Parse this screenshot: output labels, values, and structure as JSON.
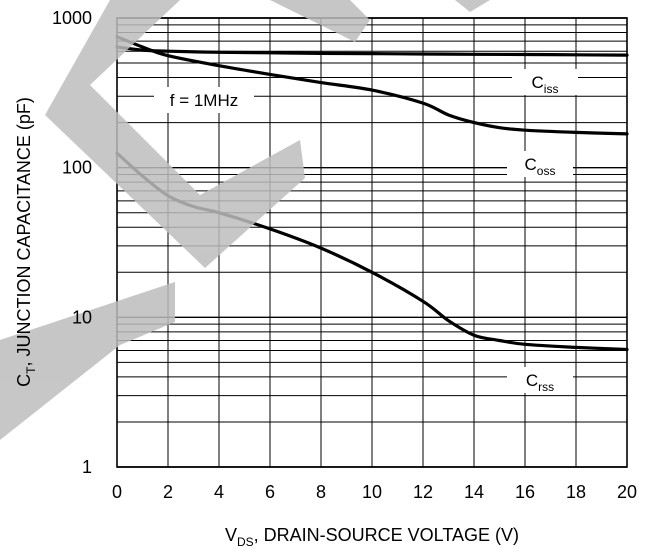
{
  "chart_data": {
    "type": "line",
    "title": "",
    "xlabel": {
      "prefix": "V",
      "sub": "DS",
      "suffix": ", DRAIN-SOURCE VOLTAGE (V)"
    },
    "ylabel": {
      "prefix": "C",
      "sub": "T",
      "suffix": ", JUNCTION CAPACITANCE (pF)"
    },
    "xlim": [
      0,
      20
    ],
    "ylim": [
      1,
      1000
    ],
    "yscale": "log",
    "grid": true,
    "x_ticks": [
      "0",
      "2",
      "4",
      "6",
      "8",
      "10",
      "12",
      "14",
      "16",
      "18",
      "20"
    ],
    "y_ticks": [
      {
        "value": 1,
        "label": "1"
      },
      {
        "value": 10,
        "label": "10"
      },
      {
        "value": 100,
        "label": "100"
      },
      {
        "value": 1000,
        "label": "1000"
      }
    ],
    "annotation": "f = 1MHz",
    "series": [
      {
        "name": "C",
        "sub": "iss",
        "x": [
          0,
          1,
          2,
          4,
          6,
          8,
          10,
          12,
          14,
          16,
          18,
          20
        ],
        "y": [
          640,
          610,
          600,
          590,
          585,
          580,
          578,
          575,
          572,
          570,
          568,
          565
        ]
      },
      {
        "name": "C",
        "sub": "oss",
        "x": [
          0,
          1,
          2,
          4,
          6,
          8,
          10,
          12,
          13,
          14,
          15,
          16,
          18,
          20
        ],
        "y": [
          750,
          640,
          560,
          480,
          420,
          370,
          330,
          270,
          225,
          200,
          185,
          178,
          172,
          168
        ]
      },
      {
        "name": "C",
        "sub": "rss",
        "x": [
          0,
          1,
          2,
          3,
          4,
          6,
          8,
          10,
          12,
          13,
          14,
          15,
          16,
          18,
          20
        ],
        "y": [
          125,
          88,
          65,
          55,
          50,
          39,
          29,
          20,
          12.8,
          9.5,
          7.6,
          7.0,
          6.6,
          6.3,
          6.1
        ]
      }
    ]
  }
}
